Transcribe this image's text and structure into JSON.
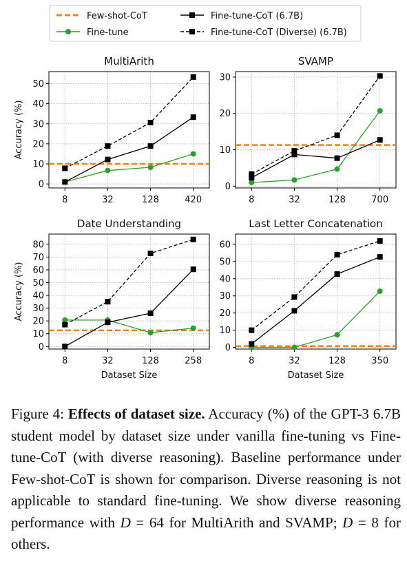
{
  "legend": [
    {
      "label": "Few-shot-CoT",
      "color": "#ff7f0e",
      "dash": "dashed",
      "marker": "none"
    },
    {
      "label": "Fine-tune-CoT (6.7B)",
      "color": "#000000",
      "dash": "solid",
      "marker": "square"
    },
    {
      "label": "Fine-tune",
      "color": "#2ca02c",
      "dash": "solid",
      "marker": "circle"
    },
    {
      "label": "Fine-tune-CoT (Diverse) (6.7B)",
      "color": "#000000",
      "dash": "dashed",
      "marker": "square"
    }
  ],
  "chart_data": [
    {
      "type": "line",
      "title": "MultiArith",
      "ylabel": "Accuracy (%)",
      "xlabel": "",
      "categories": [
        "8",
        "32",
        "128",
        "420"
      ],
      "ylim": [
        -2,
        56
      ],
      "yticks": [
        0,
        10,
        20,
        30,
        40,
        50
      ],
      "grid": true,
      "series": [
        {
          "name": "Few-shot-CoT",
          "values": [
            10,
            10,
            10,
            10
          ]
        },
        {
          "name": "Fine-tune",
          "values": [
            1,
            6.7,
            8.3,
            15
          ]
        },
        {
          "name": "Fine-tune-CoT (6.7B)",
          "values": [
            1,
            12.2,
            18.9,
            33.3
          ]
        },
        {
          "name": "Fine-tune-CoT (Diverse) (6.7B)",
          "values": [
            7.8,
            18.9,
            30.6,
            53.3
          ]
        }
      ]
    },
    {
      "type": "line",
      "title": "SVAMP",
      "ylabel": "",
      "xlabel": "",
      "categories": [
        "8",
        "32",
        "128",
        "700"
      ],
      "ylim": [
        -0.5,
        31.5
      ],
      "yticks": [
        0,
        10,
        20,
        30
      ],
      "grid": true,
      "series": [
        {
          "name": "Few-shot-CoT",
          "values": [
            11.3,
            11.3,
            11.3,
            11.3
          ]
        },
        {
          "name": "Fine-tune",
          "values": [
            1,
            1.7,
            4.7,
            20.7
          ]
        },
        {
          "name": "Fine-tune-CoT (6.7B)",
          "values": [
            2.3,
            8.7,
            7.7,
            12.7
          ]
        },
        {
          "name": "Fine-tune-CoT (Diverse) (6.7B)",
          "values": [
            3.3,
            9.7,
            14,
            30.3
          ]
        }
      ]
    },
    {
      "type": "line",
      "title": "Date Understanding",
      "ylabel": "Accuracy (%)",
      "xlabel": "Dataset Size",
      "categories": [
        "8",
        "32",
        "128",
        "258"
      ],
      "ylim": [
        -2,
        88
      ],
      "yticks": [
        0,
        10,
        20,
        30,
        40,
        50,
        60,
        70,
        80
      ],
      "grid": true,
      "series": [
        {
          "name": "Few-shot-CoT",
          "values": [
            12.6,
            12.6,
            12.6,
            12.6
          ]
        },
        {
          "name": "Fine-tune",
          "values": [
            20.7,
            20.7,
            10.8,
            14.4
          ]
        },
        {
          "name": "Fine-tune-CoT (6.7B)",
          "values": [
            0,
            18.9,
            26.1,
            60.4
          ]
        },
        {
          "name": "Fine-tune-CoT (Diverse) (6.7B)",
          "values": [
            17.1,
            35.1,
            72.9,
            83.8
          ]
        }
      ]
    },
    {
      "type": "line",
      "title": "Last Letter Concatenation",
      "ylabel": "",
      "xlabel": "Dataset Size",
      "categories": [
        "8",
        "32",
        "128",
        "350"
      ],
      "ylim": [
        -1,
        66
      ],
      "yticks": [
        0,
        10,
        20,
        30,
        40,
        50,
        60
      ],
      "grid": true,
      "series": [
        {
          "name": "Few-shot-CoT",
          "values": [
            0.7,
            0.7,
            0.7,
            0.7
          ]
        },
        {
          "name": "Fine-tune",
          "values": [
            0,
            0,
            7.3,
            32.7
          ]
        },
        {
          "name": "Fine-tune-CoT (6.7B)",
          "values": [
            2,
            21.3,
            42.7,
            52.7
          ]
        },
        {
          "name": "Fine-tune-CoT (Diverse) (6.7B)",
          "values": [
            10,
            29.3,
            54,
            62
          ]
        }
      ]
    }
  ],
  "caption": {
    "prefix": "Figure 4: ",
    "bold": "Effects of dataset size.",
    "text1": " Accuracy (%) of the GPT-3 6.7B student model by dataset size under vanilla fine-tuning vs Fine-tune-CoT (with diverse reasoning). Baseline performance under Few-shot-CoT is shown for comparison. Diverse reasoning is not applicable to standard fine-tuning. We show diverse reasoning performance with ",
    "var1": "D",
    "eq1": " = 64",
    "text2": " for MultiArith and SVAMP; ",
    "var2": "D",
    "eq2": " = 8",
    "text3": " for others."
  }
}
